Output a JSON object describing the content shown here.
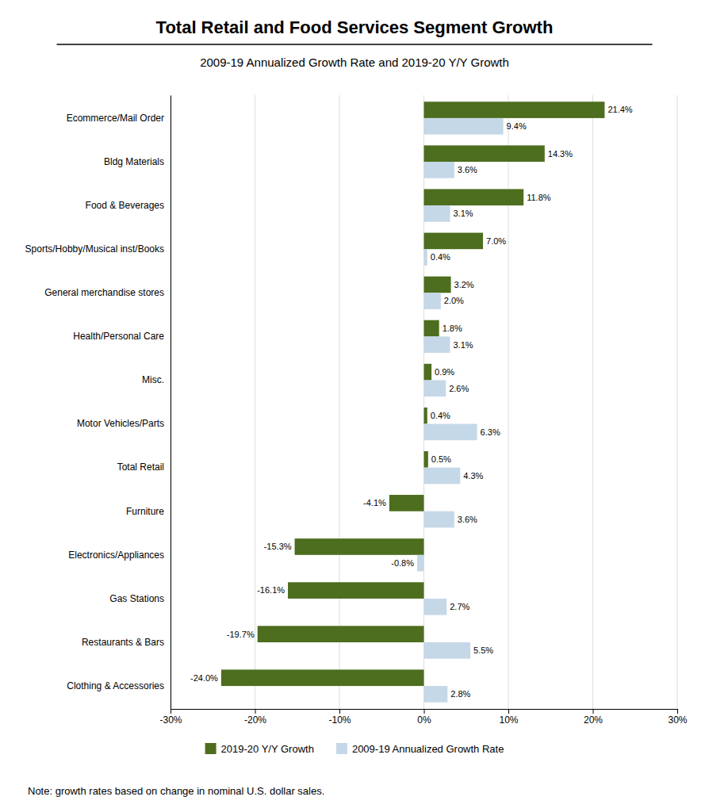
{
  "chart_data": {
    "type": "bar",
    "orientation": "horizontal",
    "title": "Total Retail and Food Services Segment Growth",
    "subtitle": "2009-19 Annualized Growth Rate and 2019-20 Y/Y Growth",
    "annotations": [
      "Note: growth rates based on change in nominal U.S. dollar sales."
    ],
    "categories": [
      "Ecommerce/Mail Order",
      "Bldg Materials",
      "Food & Beverages",
      "Sports/Hobby/Musical inst/Books",
      "General merchandise stores",
      "Health/Personal Care",
      "Misc.",
      "Motor Vehicles/Parts",
      "Total Retail",
      "Furniture",
      "Electronics/Appliances",
      "Gas Stations",
      "Restaurants & Bars",
      "Clothing & Accessories"
    ],
    "series": [
      {
        "name": "2019-20 Y/Y Growth",
        "color": "#4d6e1e",
        "values": [
          21.4,
          14.3,
          11.8,
          7.0,
          3.2,
          1.8,
          0.9,
          0.4,
          0.5,
          -4.1,
          -15.3,
          -16.1,
          -19.7,
          -24.0
        ],
        "value_labels": [
          "21.4%",
          "14.3%",
          "11.8%",
          "7.0%",
          "3.2%",
          "1.8%",
          "0.9%",
          "0.4%",
          "0.5%",
          "-4.1%",
          "-15.3%",
          "-16.1%",
          "-19.7%",
          "-24.0%"
        ]
      },
      {
        "name": "2009-19 Annualized Growth Rate",
        "color": "#c5d8e8",
        "values": [
          9.4,
          3.6,
          3.1,
          0.4,
          2.0,
          3.1,
          2.6,
          6.3,
          4.3,
          3.6,
          -0.8,
          2.7,
          5.5,
          2.8
        ],
        "value_labels": [
          "9.4%",
          "3.6%",
          "3.1%",
          "0.4%",
          "2.0%",
          "3.1%",
          "2.6%",
          "6.3%",
          "4.3%",
          "3.6%",
          "-0.8%",
          "2.7%",
          "5.5%",
          "2.8%"
        ]
      }
    ],
    "xlim": [
      -30,
      30
    ],
    "xticks": [
      {
        "value": -30,
        "label": "-30%"
      },
      {
        "value": -20,
        "label": "-20%"
      },
      {
        "value": -10,
        "label": "-10%"
      },
      {
        "value": 0,
        "label": "0%"
      },
      {
        "value": 10,
        "label": "10%"
      },
      {
        "value": 20,
        "label": "20%"
      },
      {
        "value": 30,
        "label": "30%"
      }
    ],
    "grid": true,
    "data_labels": true,
    "legend": "bottom"
  }
}
